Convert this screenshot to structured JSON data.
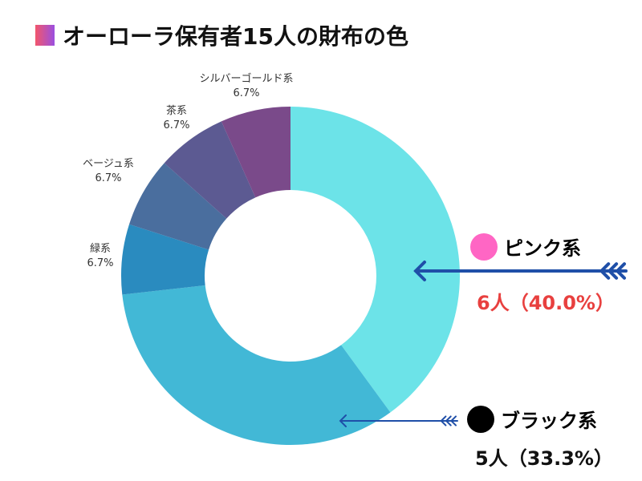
{
  "chart_data": {
    "type": "pie",
    "donut": true,
    "title": "オーローラ保有者15人の財布の色",
    "start": "top",
    "direction": "clockwise",
    "slices": [
      {
        "label": "ピンク系",
        "value": 40.0,
        "count_label": "6人（40.0%）",
        "color": "#6ce3e8"
      },
      {
        "label": "ブラック系",
        "value": 33.3,
        "count_label": "5人（33.3%）",
        "color": "#42b8d6"
      },
      {
        "label": "緑系",
        "value": 6.7,
        "pct_label": "6.7%",
        "color": "#2a8bbf"
      },
      {
        "label": "ベージュ系",
        "value": 6.7,
        "pct_label": "6.7%",
        "color": "#4a6e9e"
      },
      {
        "label": "茶系",
        "value": 6.7,
        "pct_label": "6.7%",
        "color": "#5c5a92"
      },
      {
        "label": "シルバーゴールド系",
        "value": 6.7,
        "pct_label": "6.7%",
        "color": "#7a4a8a"
      }
    ],
    "callout_colors": {
      "pink_dot": "#ff66c4",
      "black_dot": "#000000",
      "arrow": "#1f4fa8",
      "pink_count": "#e8403f"
    }
  }
}
